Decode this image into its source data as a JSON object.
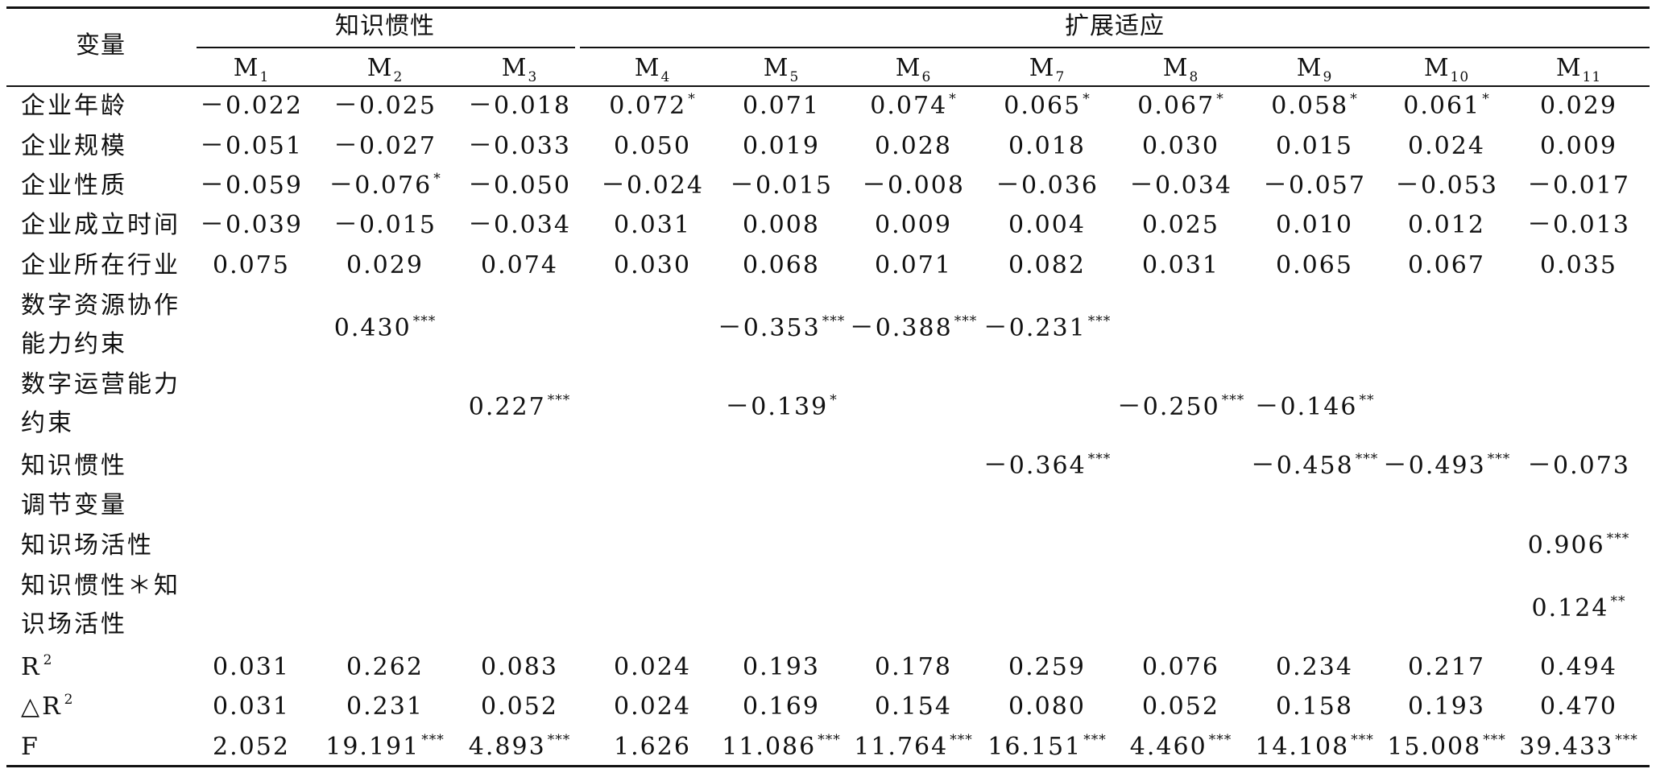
{
  "header": {
    "var_label": "变量",
    "group_inertia": "知识惯性",
    "group_adapt": "扩展适应",
    "models": [
      {
        "m": "M",
        "sub": "1"
      },
      {
        "m": "M",
        "sub": "2"
      },
      {
        "m": "M",
        "sub": "3"
      },
      {
        "m": "M",
        "sub": "4"
      },
      {
        "m": "M",
        "sub": "5"
      },
      {
        "m": "M",
        "sub": "6"
      },
      {
        "m": "M",
        "sub": "7"
      },
      {
        "m": "M",
        "sub": "8"
      },
      {
        "m": "M",
        "sub": "9"
      },
      {
        "m": "M",
        "sub": "10"
      },
      {
        "m": "M",
        "sub": "11"
      }
    ]
  },
  "rows": [
    {
      "label_lines": [
        "企业年龄"
      ],
      "cells": [
        {
          "v": "－0.022",
          "s": ""
        },
        {
          "v": "－0.025",
          "s": ""
        },
        {
          "v": "－0.018",
          "s": ""
        },
        {
          "v": "0.072",
          "s": "*"
        },
        {
          "v": "0.071",
          "s": ""
        },
        {
          "v": "0.074",
          "s": "*"
        },
        {
          "v": "0.065",
          "s": "*"
        },
        {
          "v": "0.067",
          "s": "*"
        },
        {
          "v": "0.058",
          "s": "*"
        },
        {
          "v": "0.061",
          "s": "*"
        },
        {
          "v": "0.029",
          "s": ""
        }
      ]
    },
    {
      "label_lines": [
        "企业规模"
      ],
      "cells": [
        {
          "v": "－0.051",
          "s": ""
        },
        {
          "v": "－0.027",
          "s": ""
        },
        {
          "v": "－0.033",
          "s": ""
        },
        {
          "v": "0.050",
          "s": ""
        },
        {
          "v": "0.019",
          "s": ""
        },
        {
          "v": "0.028",
          "s": ""
        },
        {
          "v": "0.018",
          "s": ""
        },
        {
          "v": "0.030",
          "s": ""
        },
        {
          "v": "0.015",
          "s": ""
        },
        {
          "v": "0.024",
          "s": ""
        },
        {
          "v": "0.009",
          "s": ""
        }
      ]
    },
    {
      "label_lines": [
        "企业性质"
      ],
      "cells": [
        {
          "v": "－0.059",
          "s": ""
        },
        {
          "v": "－0.076",
          "s": "*"
        },
        {
          "v": "－0.050",
          "s": ""
        },
        {
          "v": "－0.024",
          "s": ""
        },
        {
          "v": "－0.015",
          "s": ""
        },
        {
          "v": "－0.008",
          "s": ""
        },
        {
          "v": "－0.036",
          "s": ""
        },
        {
          "v": "－0.034",
          "s": ""
        },
        {
          "v": "－0.057",
          "s": ""
        },
        {
          "v": "－0.053",
          "s": ""
        },
        {
          "v": "－0.017",
          "s": ""
        }
      ]
    },
    {
      "label_lines": [
        "企业成立时间"
      ],
      "cells": [
        {
          "v": "－0.039",
          "s": ""
        },
        {
          "v": "－0.015",
          "s": ""
        },
        {
          "v": "－0.034",
          "s": ""
        },
        {
          "v": "0.031",
          "s": ""
        },
        {
          "v": "0.008",
          "s": ""
        },
        {
          "v": "0.009",
          "s": ""
        },
        {
          "v": "0.004",
          "s": ""
        },
        {
          "v": "0.025",
          "s": ""
        },
        {
          "v": "0.010",
          "s": ""
        },
        {
          "v": "0.012",
          "s": ""
        },
        {
          "v": "－0.013",
          "s": ""
        }
      ]
    },
    {
      "label_lines": [
        "企业所在行业"
      ],
      "cells": [
        {
          "v": "0.075",
          "s": ""
        },
        {
          "v": "0.029",
          "s": ""
        },
        {
          "v": "0.074",
          "s": ""
        },
        {
          "v": "0.030",
          "s": ""
        },
        {
          "v": "0.068",
          "s": ""
        },
        {
          "v": "0.071",
          "s": ""
        },
        {
          "v": "0.082",
          "s": ""
        },
        {
          "v": "0.031",
          "s": ""
        },
        {
          "v": "0.065",
          "s": ""
        },
        {
          "v": "0.067",
          "s": ""
        },
        {
          "v": "0.035",
          "s": ""
        }
      ]
    },
    {
      "label_lines": [
        "数字资源协作",
        "能力约束"
      ],
      "cells": [
        {
          "v": "",
          "s": ""
        },
        {
          "v": "0.430",
          "s": "***"
        },
        {
          "v": "",
          "s": ""
        },
        {
          "v": "",
          "s": ""
        },
        {
          "v": "－0.353",
          "s": "***"
        },
        {
          "v": "－0.388",
          "s": "***"
        },
        {
          "v": "－0.231",
          "s": "***"
        },
        {
          "v": "",
          "s": ""
        },
        {
          "v": "",
          "s": ""
        },
        {
          "v": "",
          "s": ""
        },
        {
          "v": "",
          "s": ""
        }
      ]
    },
    {
      "label_lines": [
        "数字运营能力",
        "约束"
      ],
      "cells": [
        {
          "v": "",
          "s": ""
        },
        {
          "v": "",
          "s": ""
        },
        {
          "v": "0.227",
          "s": "***"
        },
        {
          "v": "",
          "s": ""
        },
        {
          "v": "－0.139",
          "s": "*"
        },
        {
          "v": "",
          "s": ""
        },
        {
          "v": "",
          "s": ""
        },
        {
          "v": "－0.250",
          "s": "***"
        },
        {
          "v": "－0.146",
          "s": "**"
        },
        {
          "v": "",
          "s": ""
        },
        {
          "v": "",
          "s": ""
        }
      ]
    },
    {
      "label_lines": [
        "知识惯性"
      ],
      "cells": [
        {
          "v": "",
          "s": ""
        },
        {
          "v": "",
          "s": ""
        },
        {
          "v": "",
          "s": ""
        },
        {
          "v": "",
          "s": ""
        },
        {
          "v": "",
          "s": ""
        },
        {
          "v": "",
          "s": ""
        },
        {
          "v": "－0.364",
          "s": "***"
        },
        {
          "v": "",
          "s": ""
        },
        {
          "v": "－0.458",
          "s": "***"
        },
        {
          "v": "－0.493",
          "s": "***"
        },
        {
          "v": "－0.073",
          "s": ""
        }
      ]
    },
    {
      "label_lines": [
        "调节变量"
      ],
      "cells": [
        {
          "v": "",
          "s": ""
        },
        {
          "v": "",
          "s": ""
        },
        {
          "v": "",
          "s": ""
        },
        {
          "v": "",
          "s": ""
        },
        {
          "v": "",
          "s": ""
        },
        {
          "v": "",
          "s": ""
        },
        {
          "v": "",
          "s": ""
        },
        {
          "v": "",
          "s": ""
        },
        {
          "v": "",
          "s": ""
        },
        {
          "v": "",
          "s": ""
        },
        {
          "v": "",
          "s": ""
        }
      ]
    },
    {
      "label_lines": [
        "知识场活性"
      ],
      "cells": [
        {
          "v": "",
          "s": ""
        },
        {
          "v": "",
          "s": ""
        },
        {
          "v": "",
          "s": ""
        },
        {
          "v": "",
          "s": ""
        },
        {
          "v": "",
          "s": ""
        },
        {
          "v": "",
          "s": ""
        },
        {
          "v": "",
          "s": ""
        },
        {
          "v": "",
          "s": ""
        },
        {
          "v": "",
          "s": ""
        },
        {
          "v": "",
          "s": ""
        },
        {
          "v": "0.906",
          "s": "***"
        }
      ]
    },
    {
      "label_lines": [
        "知识惯性＊知",
        "识场活性"
      ],
      "cells": [
        {
          "v": "",
          "s": ""
        },
        {
          "v": "",
          "s": ""
        },
        {
          "v": "",
          "s": ""
        },
        {
          "v": "",
          "s": ""
        },
        {
          "v": "",
          "s": ""
        },
        {
          "v": "",
          "s": ""
        },
        {
          "v": "",
          "s": ""
        },
        {
          "v": "",
          "s": ""
        },
        {
          "v": "",
          "s": ""
        },
        {
          "v": "",
          "s": ""
        },
        {
          "v": "0.124",
          "s": "**"
        }
      ]
    },
    {
      "label_lines": [
        "R"
      ],
      "label_sup": "2",
      "cells": [
        {
          "v": "0.031",
          "s": ""
        },
        {
          "v": "0.262",
          "s": ""
        },
        {
          "v": "0.083",
          "s": ""
        },
        {
          "v": "0.024",
          "s": ""
        },
        {
          "v": "0.193",
          "s": ""
        },
        {
          "v": "0.178",
          "s": ""
        },
        {
          "v": "0.259",
          "s": ""
        },
        {
          "v": "0.076",
          "s": ""
        },
        {
          "v": "0.234",
          "s": ""
        },
        {
          "v": "0.217",
          "s": ""
        },
        {
          "v": "0.494",
          "s": ""
        }
      ]
    },
    {
      "label_lines": [
        "△R"
      ],
      "label_sup": "2",
      "cells": [
        {
          "v": "0.031",
          "s": ""
        },
        {
          "v": "0.231",
          "s": ""
        },
        {
          "v": "0.052",
          "s": ""
        },
        {
          "v": "0.024",
          "s": ""
        },
        {
          "v": "0.169",
          "s": ""
        },
        {
          "v": "0.154",
          "s": ""
        },
        {
          "v": "0.080",
          "s": ""
        },
        {
          "v": "0.052",
          "s": ""
        },
        {
          "v": "0.158",
          "s": ""
        },
        {
          "v": "0.193",
          "s": ""
        },
        {
          "v": "0.470",
          "s": ""
        }
      ]
    },
    {
      "label_lines": [
        "F"
      ],
      "cells": [
        {
          "v": "2.052",
          "s": ""
        },
        {
          "v": "19.191",
          "s": "***"
        },
        {
          "v": "4.893",
          "s": "***"
        },
        {
          "v": "1.626",
          "s": ""
        },
        {
          "v": "11.086",
          "s": "***"
        },
        {
          "v": "11.764",
          "s": "***"
        },
        {
          "v": "16.151",
          "s": "***"
        },
        {
          "v": "4.460",
          "s": "***"
        },
        {
          "v": "14.108",
          "s": "***"
        },
        {
          "v": "15.008",
          "s": "***"
        },
        {
          "v": "39.433",
          "s": "***"
        }
      ]
    }
  ]
}
